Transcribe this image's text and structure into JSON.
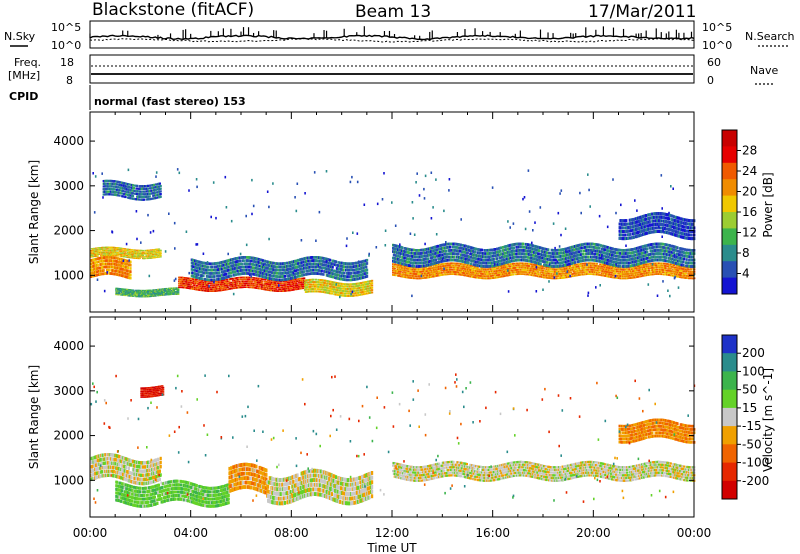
{
  "header": {
    "station": "Blackstone (fitACF)",
    "beam": "Beam 13",
    "date": "17/Mar/2011"
  },
  "noise_panel": {
    "left_label": "N.Sky",
    "right_label": "N.Search",
    "left_ticks": [
      "10^5",
      "10^0"
    ],
    "right_ticks": [
      "10^5",
      "10^0"
    ]
  },
  "freq_panel": {
    "left_label_top": "Freq.",
    "left_label_unit": "[MHz]",
    "left_ticks": [
      "18",
      "8"
    ],
    "right_label": "Nave",
    "right_ticks": [
      "60",
      "0"
    ]
  },
  "cpid": {
    "label": "CPID",
    "value": "normal (fast stereo) 153"
  },
  "chart_data": [
    {
      "type": "heatmap",
      "name": "power",
      "xlabel": "Time UT",
      "ylabel": "Slant Range [km]",
      "xlim": [
        0,
        24
      ],
      "ylim": [
        180,
        4650
      ],
      "x_ticks": [
        "00:00",
        "04:00",
        "08:00",
        "12:00",
        "16:00",
        "20:00",
        "00:00"
      ],
      "y_ticks": [
        1000,
        2000,
        3000,
        4000
      ],
      "colorbar": {
        "label": "Power [dB]",
        "ticks": [
          "4",
          "8",
          "12",
          "16",
          "20",
          "24",
          "28"
        ],
        "colors": [
          "#1414d2",
          "#2850b4",
          "#2a8c8c",
          "#3cb44c",
          "#9ccd32",
          "#f0c800",
          "#f08c00",
          "#f05a00",
          "#e60000",
          "#c80000"
        ]
      },
      "bands": [
        {
          "t0": 0.0,
          "t1": 1.6,
          "r_center": 1150,
          "r_half": 180,
          "level": 22
        },
        {
          "t0": 0.0,
          "t1": 2.8,
          "r_center": 1500,
          "r_half": 90,
          "level": 18
        },
        {
          "t0": 0.5,
          "t1": 2.8,
          "r_center": 2900,
          "r_half": 150,
          "level": 8
        },
        {
          "t0": 1.0,
          "t1": 3.5,
          "r_center": 620,
          "r_half": 70,
          "level": 12
        },
        {
          "t0": 3.5,
          "t1": 8.5,
          "r_center": 800,
          "r_half": 110,
          "level": 26
        },
        {
          "t0": 8.5,
          "t1": 11.2,
          "r_center": 720,
          "r_half": 130,
          "level": 18
        },
        {
          "t0": 4.0,
          "t1": 11.0,
          "r_center": 1150,
          "r_half": 180,
          "level": 8
        },
        {
          "t0": 12.0,
          "t1": 24.0,
          "r_center": 1100,
          "r_half": 120,
          "level": 22
        },
        {
          "t0": 12.0,
          "t1": 24.0,
          "r_center": 1450,
          "r_half": 180,
          "level": 8
        },
        {
          "t0": 21.0,
          "t1": 24.0,
          "r_center": 2100,
          "r_half": 200,
          "level": 6
        }
      ]
    },
    {
      "type": "heatmap",
      "name": "velocity",
      "xlabel": "Time UT",
      "ylabel": "Slant Range [km]",
      "xlim": [
        0,
        24
      ],
      "ylim": [
        180,
        4650
      ],
      "x_ticks": [
        "00:00",
        "04:00",
        "08:00",
        "12:00",
        "16:00",
        "20:00",
        "00:00"
      ],
      "y_ticks": [
        1000,
        2000,
        3000,
        4000
      ],
      "colorbar": {
        "label": "Velocity [m s^-1]",
        "ticks": [
          "200",
          "100",
          "50",
          "15",
          "-15",
          "-50",
          "-100",
          "-200"
        ],
        "colors": [
          "#1e32c8",
          "#2a8c8c",
          "#3cb44c",
          "#64d228",
          "#c8c8c8",
          "#f0a000",
          "#f06400",
          "#e62800",
          "#d20000"
        ]
      },
      "bands": [
        {
          "t0": 0.0,
          "t1": 2.8,
          "r_center": 1250,
          "r_half": 230,
          "level": 0
        },
        {
          "t0": 2.0,
          "t1": 2.9,
          "r_center": 3000,
          "r_half": 100,
          "level": -200
        },
        {
          "t0": 1.0,
          "t1": 5.5,
          "r_center": 700,
          "r_half": 200,
          "level": 40
        },
        {
          "t0": 5.5,
          "t1": 7.0,
          "r_center": 1000,
          "r_half": 250,
          "level": -40
        },
        {
          "t0": 7.0,
          "t1": 11.2,
          "r_center": 850,
          "r_half": 260,
          "level": 0
        },
        {
          "t0": 12.0,
          "t1": 24.0,
          "r_center": 1200,
          "r_half": 150,
          "level": 0
        },
        {
          "t0": 21.0,
          "t1": 24.0,
          "r_center": 2100,
          "r_half": 180,
          "level": -50
        }
      ]
    }
  ]
}
